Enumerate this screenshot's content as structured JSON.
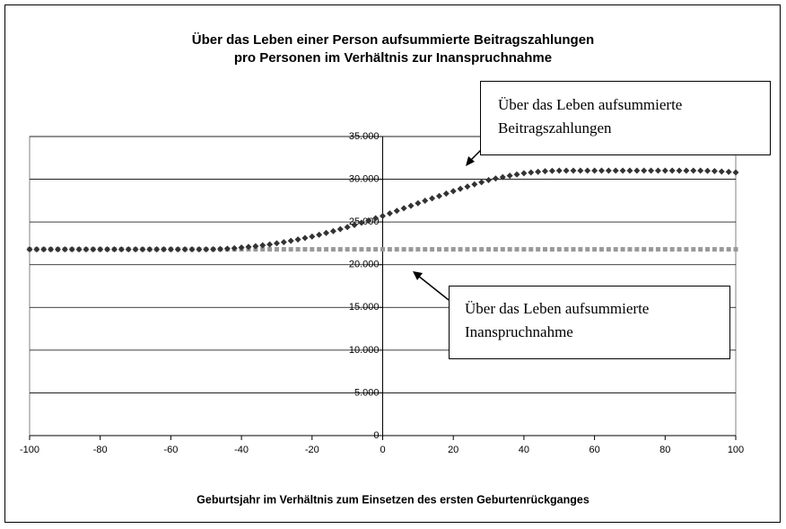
{
  "chart_data": {
    "type": "scatter",
    "title": [
      "Über das Leben einer Person aufsummierte Beitragszahlungen",
      "pro Personen im Verhältnis zur Inanspruchnahme"
    ],
    "x_label": "Geburtsjahr im Verhältnis zum Einsetzen des ersten Geburtenrückganges",
    "x": [
      -100,
      -98,
      -96,
      -94,
      -92,
      -90,
      -88,
      -86,
      -84,
      -82,
      -80,
      -78,
      -76,
      -74,
      -72,
      -70,
      -68,
      -66,
      -64,
      -62,
      -60,
      -58,
      -56,
      -54,
      -52,
      -50,
      -48,
      -46,
      -44,
      -42,
      -40,
      -38,
      -36,
      -34,
      -32,
      -30,
      -28,
      -26,
      -24,
      -22,
      -20,
      -18,
      -16,
      -14,
      -12,
      -10,
      -8,
      -6,
      -4,
      -2,
      0,
      2,
      4,
      6,
      8,
      10,
      12,
      14,
      16,
      18,
      20,
      22,
      24,
      26,
      28,
      30,
      32,
      34,
      36,
      38,
      40,
      42,
      44,
      46,
      48,
      50,
      52,
      54,
      56,
      58,
      60,
      62,
      64,
      66,
      68,
      70,
      72,
      74,
      76,
      78,
      80,
      82,
      84,
      86,
      88,
      90,
      92,
      94,
      96,
      98,
      100
    ],
    "series": [
      {
        "color": "#333333",
        "marker": "diamond",
        "values": [
          21800,
          21800,
          21800,
          21800,
          21800,
          21800,
          21800,
          21800,
          21800,
          21800,
          21800,
          21800,
          21800,
          21800,
          21800,
          21800,
          21800,
          21800,
          21800,
          21800,
          21800,
          21800,
          21800,
          21800,
          21800,
          21800,
          21810,
          21830,
          21870,
          21930,
          22000,
          22080,
          22170,
          22270,
          22380,
          22500,
          22640,
          22790,
          22950,
          23120,
          23300,
          23500,
          23710,
          23930,
          24160,
          24400,
          24650,
          24910,
          25170,
          25430,
          25700,
          26000,
          26300,
          26600,
          26900,
          27200,
          27480,
          27760,
          28040,
          28320,
          28600,
          28880,
          29140,
          29400,
          29650,
          29900,
          30080,
          30250,
          30410,
          30560,
          30700,
          30800,
          30880,
          30940,
          30980,
          31000,
          31000,
          31000,
          31000,
          31000,
          31000,
          31000,
          31000,
          31000,
          31000,
          31000,
          31000,
          31000,
          31000,
          31000,
          31000,
          31000,
          31000,
          31000,
          31000,
          31000,
          30980,
          30950,
          30900,
          30860,
          30800
        ]
      },
      {
        "color": "#999999",
        "marker": "square",
        "values": [
          21800,
          21800,
          21800,
          21800,
          21800,
          21800,
          21800,
          21800,
          21800,
          21800,
          21800,
          21800,
          21800,
          21800,
          21800,
          21800,
          21800,
          21800,
          21800,
          21800,
          21800,
          21800,
          21800,
          21800,
          21800,
          21800,
          21800,
          21800,
          21800,
          21800,
          21800,
          21800,
          21800,
          21800,
          21800,
          21800,
          21800,
          21800,
          21800,
          21800,
          21800,
          21800,
          21800,
          21800,
          21800,
          21800,
          21800,
          21800,
          21800,
          21800,
          21800,
          21800,
          21800,
          21800,
          21800,
          21800,
          21800,
          21800,
          21800,
          21800,
          21800,
          21800,
          21800,
          21800,
          21800,
          21800,
          21800,
          21800,
          21800,
          21800,
          21800,
          21800,
          21800,
          21800,
          21800,
          21800,
          21800,
          21800,
          21800,
          21800,
          21800,
          21800,
          21800,
          21800,
          21800,
          21800,
          21800,
          21800,
          21800,
          21800,
          21800,
          21800,
          21800,
          21800,
          21800,
          21800,
          21800,
          21800,
          21800,
          21800,
          21800
        ]
      }
    ],
    "annotations": [
      {
        "text": [
          "Über das Leben aufsummierte",
          "Beitragszahlungen"
        ]
      },
      {
        "text": [
          "Über das Leben aufsummierte",
          "Inanspruchnahme"
        ]
      }
    ],
    "xlim": [
      -100,
      100
    ],
    "xticks": [
      -100,
      -80,
      -60,
      -40,
      -20,
      0,
      20,
      40,
      60,
      80,
      100
    ],
    "ylim": [
      0,
      35000
    ],
    "yticks": [
      0,
      {
        "value": 5000,
        "label": "5.000"
      },
      {
        "value": 10000,
        "label": "10.000"
      },
      {
        "value": 15000,
        "label": "15.000"
      },
      {
        "value": 20000,
        "label": "20.000"
      },
      {
        "value": 25000,
        "label": "25.000"
      },
      {
        "value": 30000,
        "label": "30.000"
      },
      {
        "value": 35000,
        "label": "35.000"
      }
    ],
    "grid": true
  }
}
